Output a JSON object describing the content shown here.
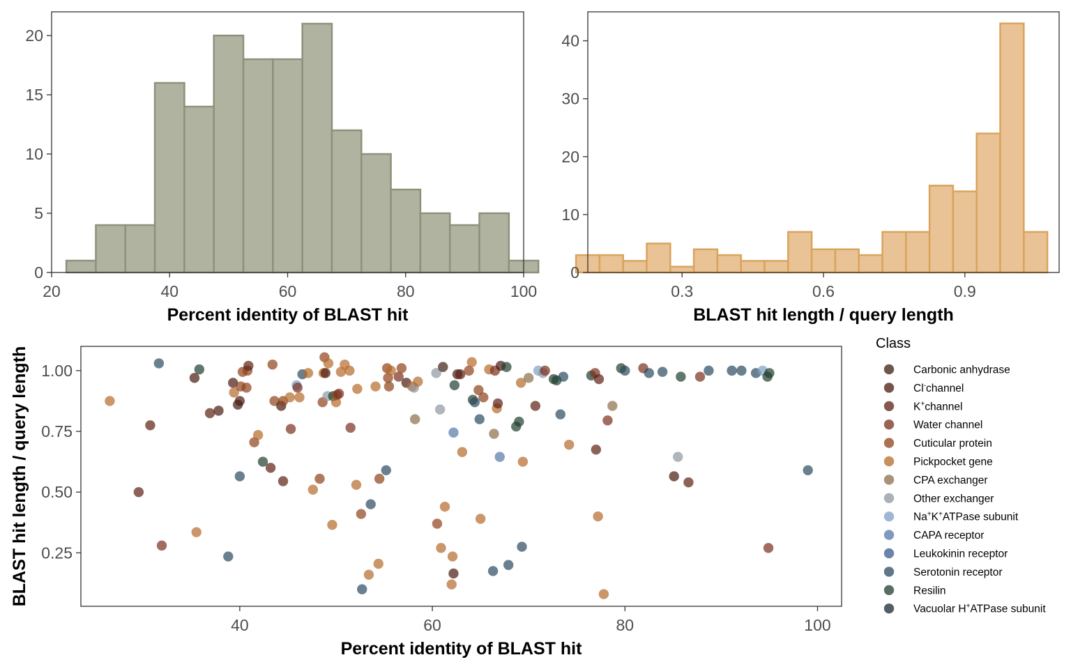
{
  "chart_data": [
    {
      "type": "bar",
      "subtype": "histogram",
      "xlabel": "Percent identity of BLAST hit",
      "ylabel": "",
      "xlim": [
        20,
        100
      ],
      "ylim": [
        0,
        22
      ],
      "x_ticks": [
        20,
        40,
        60,
        80,
        100
      ],
      "y_ticks": [
        0,
        5,
        10,
        15,
        20
      ],
      "bin_width": 5,
      "bin_starts": [
        22.5,
        27.5,
        32.5,
        37.5,
        42.5,
        47.5,
        52.5,
        57.5,
        62.5,
        67.5,
        72.5,
        77.5,
        82.5,
        87.5,
        92.5,
        97.5
      ],
      "values": [
        1,
        4,
        4,
        16,
        14,
        20,
        18,
        18,
        21,
        12,
        10,
        7,
        5,
        4,
        5,
        1
      ],
      "fill": "#b0b3a0",
      "stroke": "#8e917a",
      "grid": false
    },
    {
      "type": "bar",
      "subtype": "histogram",
      "xlabel": "BLAST hit length / query length",
      "ylabel": "",
      "xlim": [
        0.1,
        1.1
      ],
      "ylim": [
        0,
        45
      ],
      "x_ticks": [
        0.3,
        0.6,
        0.9
      ],
      "y_ticks": [
        0,
        10,
        20,
        30,
        40
      ],
      "bin_width": 0.05,
      "bin_starts": [
        0.075,
        0.125,
        0.175,
        0.225,
        0.275,
        0.325,
        0.375,
        0.425,
        0.475,
        0.525,
        0.575,
        0.625,
        0.675,
        0.725,
        0.775,
        0.825,
        0.875,
        0.925,
        0.975,
        1.025
      ],
      "values": [
        3,
        3,
        2,
        5,
        1,
        4,
        3,
        2,
        2,
        7,
        4,
        4,
        3,
        7,
        7,
        15,
        14,
        24,
        43,
        7
      ],
      "fill": "#e9c395",
      "stroke": "#d9a35c",
      "grid": false
    },
    {
      "type": "scatter",
      "xlabel": "Percent identity of BLAST hit",
      "ylabel": "BLAST hit length / query length",
      "xlim": [
        23.5,
        102.5
      ],
      "ylim": [
        0.03,
        1.1
      ],
      "x_ticks": [
        40,
        60,
        80,
        100
      ],
      "y_ticks": [
        0.25,
        0.5,
        0.75,
        1.0
      ],
      "y_tick_labels": [
        "0.25",
        "0.50",
        "0.75",
        "1.00"
      ],
      "grid": false,
      "legend_title": "Class",
      "legend_position": "right",
      "classes": [
        {
          "label": "Carbonic anhydrase",
          "color": "#3d1e12"
        },
        {
          "label": "Cl-channel",
          "color": "#4a1a10"
        },
        {
          "label": "K+channel",
          "color": "#5c1f12"
        },
        {
          "label": "Water channel",
          "color": "#7a2f1c"
        },
        {
          "label": "Cuticular protein",
          "color": "#8f4219"
        },
        {
          "label": "Pickpocket gene",
          "color": "#b56a2a"
        },
        {
          "label": "CPA exchanger",
          "color": "#8c6e4a"
        },
        {
          "label": "Other exchanger",
          "color": "#8f979e"
        },
        {
          "label": "Na+K+ATPase subunit",
          "color": "#7f9fc7"
        },
        {
          "label": "CAPA receptor",
          "color": "#5677a6"
        },
        {
          "label": "Leukokinin receptor",
          "color": "#3b5b8c"
        },
        {
          "label": "Serotonin receptor",
          "color": "#2b4a60"
        },
        {
          "label": "Resilin",
          "color": "#1f3f2e"
        },
        {
          "label": "Vacuolar H+ATPase subunit",
          "color": "#1a2a36"
        }
      ],
      "points": [
        {
          "x": 26.5,
          "y": 0.875,
          "c": 5
        },
        {
          "x": 29.5,
          "y": 0.5,
          "c": 2
        },
        {
          "x": 30.7,
          "y": 0.775,
          "c": 2
        },
        {
          "x": 31.6,
          "y": 1.03,
          "c": 11
        },
        {
          "x": 31.9,
          "y": 0.28,
          "c": 3
        },
        {
          "x": 35.3,
          "y": 0.97,
          "c": 1
        },
        {
          "x": 35.5,
          "y": 0.335,
          "c": 5
        },
        {
          "x": 35.8,
          "y": 1.005,
          "c": 12
        },
        {
          "x": 36.9,
          "y": 0.825,
          "c": 2
        },
        {
          "x": 37.8,
          "y": 0.835,
          "c": 1
        },
        {
          "x": 38.8,
          "y": 0.235,
          "c": 11
        },
        {
          "x": 39.3,
          "y": 0.95,
          "c": 1
        },
        {
          "x": 39.4,
          "y": 0.91,
          "c": 5
        },
        {
          "x": 39.8,
          "y": 0.86,
          "c": 0
        },
        {
          "x": 40.0,
          "y": 0.875,
          "c": 1
        },
        {
          "x": 40.1,
          "y": 0.935,
          "c": 4
        },
        {
          "x": 40.0,
          "y": 0.565,
          "c": 11
        },
        {
          "x": 40.3,
          "y": 0.995,
          "c": 4
        },
        {
          "x": 40.7,
          "y": 0.93,
          "c": 4
        },
        {
          "x": 40.8,
          "y": 1.0,
          "c": 4
        },
        {
          "x": 40.9,
          "y": 1.02,
          "c": 2
        },
        {
          "x": 41.5,
          "y": 0.705,
          "c": 4
        },
        {
          "x": 41.9,
          "y": 0.735,
          "c": 5
        },
        {
          "x": 42.4,
          "y": 0.625,
          "c": 12
        },
        {
          "x": 43.2,
          "y": 0.6,
          "c": 2
        },
        {
          "x": 43.4,
          "y": 1.025,
          "c": 4
        },
        {
          "x": 43.6,
          "y": 0.875,
          "c": 4
        },
        {
          "x": 44.3,
          "y": 0.855,
          "c": 1
        },
        {
          "x": 44.5,
          "y": 0.875,
          "c": 4
        },
        {
          "x": 44.5,
          "y": 0.545,
          "c": 2
        },
        {
          "x": 45.2,
          "y": 0.89,
          "c": 5
        },
        {
          "x": 45.3,
          "y": 0.76,
          "c": 3
        },
        {
          "x": 45.9,
          "y": 0.94,
          "c": 8
        },
        {
          "x": 46.0,
          "y": 0.93,
          "c": 3
        },
        {
          "x": 46.2,
          "y": 0.89,
          "c": 5
        },
        {
          "x": 46.5,
          "y": 0.985,
          "c": 11
        },
        {
          "x": 47.1,
          "y": 0.99,
          "c": 5
        },
        {
          "x": 47.6,
          "y": 0.51,
          "c": 5
        },
        {
          "x": 48.3,
          "y": 0.555,
          "c": 4
        },
        {
          "x": 48.6,
          "y": 0.87,
          "c": 4
        },
        {
          "x": 48.7,
          "y": 0.99,
          "c": 5
        },
        {
          "x": 48.8,
          "y": 1.055,
          "c": 4
        },
        {
          "x": 48.9,
          "y": 0.99,
          "c": 1
        },
        {
          "x": 49.1,
          "y": 0.895,
          "c": 7
        },
        {
          "x": 49.2,
          "y": 1.03,
          "c": 5
        },
        {
          "x": 49.6,
          "y": 0.365,
          "c": 5
        },
        {
          "x": 49.7,
          "y": 0.895,
          "c": 12
        },
        {
          "x": 50.0,
          "y": 0.87,
          "c": 5
        },
        {
          "x": 50.1,
          "y": 0.9,
          "c": 4
        },
        {
          "x": 50.3,
          "y": 0.905,
          "c": 3
        },
        {
          "x": 50.5,
          "y": 0.995,
          "c": 5
        },
        {
          "x": 50.9,
          "y": 1.025,
          "c": 5
        },
        {
          "x": 51.4,
          "y": 1.0,
          "c": 5
        },
        {
          "x": 51.5,
          "y": 0.765,
          "c": 3
        },
        {
          "x": 52.1,
          "y": 0.53,
          "c": 5
        },
        {
          "x": 52.2,
          "y": 0.925,
          "c": 5
        },
        {
          "x": 52.6,
          "y": 0.41,
          "c": 4
        },
        {
          "x": 52.7,
          "y": 0.1,
          "c": 11
        },
        {
          "x": 53.4,
          "y": 0.16,
          "c": 5
        },
        {
          "x": 53.6,
          "y": 0.45,
          "c": 11
        },
        {
          "x": 54.1,
          "y": 0.935,
          "c": 5
        },
        {
          "x": 54.4,
          "y": 0.205,
          "c": 5
        },
        {
          "x": 54.5,
          "y": 0.555,
          "c": 4
        },
        {
          "x": 55.2,
          "y": 0.59,
          "c": 11
        },
        {
          "x": 55.3,
          "y": 1.01,
          "c": 4
        },
        {
          "x": 55.4,
          "y": 0.97,
          "c": 4
        },
        {
          "x": 55.5,
          "y": 0.935,
          "c": 4
        },
        {
          "x": 55.7,
          "y": 1.0,
          "c": 5
        },
        {
          "x": 56.5,
          "y": 0.975,
          "c": 3
        },
        {
          "x": 56.8,
          "y": 1.01,
          "c": 4
        },
        {
          "x": 57.3,
          "y": 0.95,
          "c": 1
        },
        {
          "x": 57.9,
          "y": 0.935,
          "c": 5
        },
        {
          "x": 58.1,
          "y": 0.93,
          "c": 7
        },
        {
          "x": 58.2,
          "y": 0.8,
          "c": 6
        },
        {
          "x": 58.5,
          "y": 0.955,
          "c": 5
        },
        {
          "x": 60.4,
          "y": 0.99,
          "c": 7
        },
        {
          "x": 60.5,
          "y": 0.37,
          "c": 4
        },
        {
          "x": 60.8,
          "y": 0.84,
          "c": 7
        },
        {
          "x": 61.1,
          "y": 1.015,
          "c": 0
        },
        {
          "x": 60.9,
          "y": 0.27,
          "c": 5
        },
        {
          "x": 61.3,
          "y": 0.44,
          "c": 5
        },
        {
          "x": 62.0,
          "y": 0.12,
          "c": 5
        },
        {
          "x": 62.1,
          "y": 0.235,
          "c": 5
        },
        {
          "x": 62.2,
          "y": 0.745,
          "c": 9
        },
        {
          "x": 62.2,
          "y": 0.165,
          "c": 1
        },
        {
          "x": 62.3,
          "y": 0.94,
          "c": 12
        },
        {
          "x": 62.6,
          "y": 0.985,
          "c": 1
        },
        {
          "x": 62.9,
          "y": 0.985,
          "c": 2
        },
        {
          "x": 63.1,
          "y": 0.665,
          "c": 5
        },
        {
          "x": 63.8,
          "y": 1.0,
          "c": 4
        },
        {
          "x": 64.1,
          "y": 1.035,
          "c": 5
        },
        {
          "x": 64.2,
          "y": 0.88,
          "c": 12
        },
        {
          "x": 64.4,
          "y": 0.87,
          "c": 11
        },
        {
          "x": 64.8,
          "y": 0.92,
          "c": 4
        },
        {
          "x": 64.9,
          "y": 0.8,
          "c": 11
        },
        {
          "x": 65.0,
          "y": 0.39,
          "c": 5
        },
        {
          "x": 65.3,
          "y": 0.89,
          "c": 4
        },
        {
          "x": 65.9,
          "y": 1.005,
          "c": 5
        },
        {
          "x": 66.3,
          "y": 0.175,
          "c": 11
        },
        {
          "x": 66.4,
          "y": 0.74,
          "c": 6
        },
        {
          "x": 66.5,
          "y": 1.0,
          "c": 3
        },
        {
          "x": 66.7,
          "y": 0.845,
          "c": 5
        },
        {
          "x": 66.8,
          "y": 0.865,
          "c": 2
        },
        {
          "x": 67.0,
          "y": 0.645,
          "c": 9
        },
        {
          "x": 67.1,
          "y": 1.02,
          "c": 1
        },
        {
          "x": 67.7,
          "y": 1.015,
          "c": 12
        },
        {
          "x": 67.9,
          "y": 0.2,
          "c": 11
        },
        {
          "x": 68.7,
          "y": 0.77,
          "c": 12
        },
        {
          "x": 69.0,
          "y": 0.79,
          "c": 12
        },
        {
          "x": 69.2,
          "y": 0.95,
          "c": 5
        },
        {
          "x": 69.3,
          "y": 0.275,
          "c": 11
        },
        {
          "x": 69.4,
          "y": 0.625,
          "c": 5
        },
        {
          "x": 70.0,
          "y": 0.97,
          "c": 6
        },
        {
          "x": 70.7,
          "y": 0.855,
          "c": 2
        },
        {
          "x": 71.0,
          "y": 1.0,
          "c": 8
        },
        {
          "x": 71.5,
          "y": 0.99,
          "c": 7
        },
        {
          "x": 71.7,
          "y": 1.0,
          "c": 3
        },
        {
          "x": 72.6,
          "y": 0.965,
          "c": 12
        },
        {
          "x": 72.9,
          "y": 0.96,
          "c": 12
        },
        {
          "x": 73.3,
          "y": 0.82,
          "c": 11
        },
        {
          "x": 73.6,
          "y": 0.975,
          "c": 11
        },
        {
          "x": 74.2,
          "y": 0.695,
          "c": 5
        },
        {
          "x": 76.5,
          "y": 0.98,
          "c": 12
        },
        {
          "x": 76.9,
          "y": 0.99,
          "c": 3
        },
        {
          "x": 77.0,
          "y": 0.675,
          "c": 2
        },
        {
          "x": 77.2,
          "y": 0.4,
          "c": 5
        },
        {
          "x": 77.3,
          "y": 0.965,
          "c": 2
        },
        {
          "x": 77.8,
          "y": 0.08,
          "c": 5
        },
        {
          "x": 78.2,
          "y": 0.795,
          "c": 3
        },
        {
          "x": 78.7,
          "y": 0.855,
          "c": 6
        },
        {
          "x": 79.6,
          "y": 1.01,
          "c": 12
        },
        {
          "x": 80.0,
          "y": 1.0,
          "c": 11
        },
        {
          "x": 81.9,
          "y": 1.01,
          "c": 3
        },
        {
          "x": 82.5,
          "y": 0.99,
          "c": 11
        },
        {
          "x": 83.9,
          "y": 0.995,
          "c": 11
        },
        {
          "x": 85.1,
          "y": 0.565,
          "c": 1
        },
        {
          "x": 85.5,
          "y": 0.645,
          "c": 7
        },
        {
          "x": 85.8,
          "y": 0.975,
          "c": 12
        },
        {
          "x": 86.6,
          "y": 0.54,
          "c": 2
        },
        {
          "x": 87.8,
          "y": 0.975,
          "c": 3
        },
        {
          "x": 88.7,
          "y": 1.0,
          "c": 11
        },
        {
          "x": 91.1,
          "y": 1.0,
          "c": 11
        },
        {
          "x": 92.1,
          "y": 1.0,
          "c": 11
        },
        {
          "x": 93.6,
          "y": 0.99,
          "c": 11
        },
        {
          "x": 94.3,
          "y": 1.0,
          "c": 8
        },
        {
          "x": 94.8,
          "y": 0.975,
          "c": 12
        },
        {
          "x": 94.9,
          "y": 0.27,
          "c": 3
        },
        {
          "x": 95.0,
          "y": 0.99,
          "c": 12
        },
        {
          "x": 99.0,
          "y": 0.59,
          "c": 11
        }
      ]
    }
  ]
}
